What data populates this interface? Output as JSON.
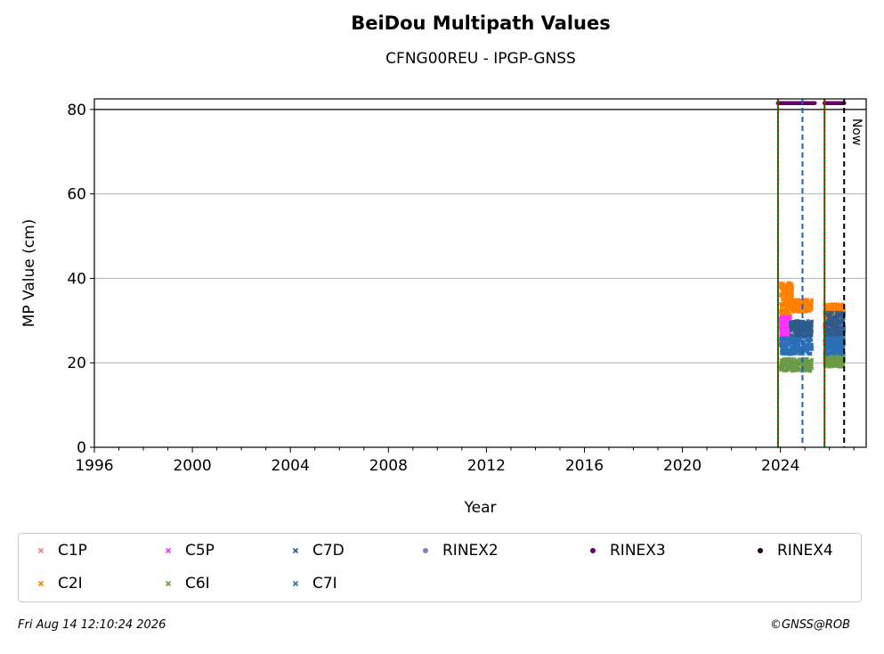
{
  "chart_data": {
    "type": "scatter",
    "title": "BeiDou Multipath Values",
    "subtitle": "CFNG00REU - IPGP-GNSS",
    "xlabel": "Year",
    "ylabel": "MP Value (cm)",
    "xlim": [
      1996,
      2027.5
    ],
    "ylim": [
      0,
      82.5
    ],
    "xticks": [
      1996,
      2000,
      2004,
      2008,
      2012,
      2016,
      2020,
      2024
    ],
    "yticks": [
      0,
      20,
      40,
      60,
      80
    ],
    "grid": "horizontal",
    "legend_placement": "bottom",
    "series": [
      {
        "name": "C1P",
        "color": "#f08080",
        "marker": "x",
        "ranges": [
          {
            "x": [
              2024.0,
              2024.4
            ],
            "y": [
              28,
              31
            ]
          },
          {
            "x": [
              2025.8,
              2026.6
            ],
            "y": [
              27,
              30
            ]
          }
        ]
      },
      {
        "name": "C2I",
        "color": "#ff8000",
        "marker": "x",
        "ranges": [
          {
            "x": [
              2024.0,
              2024.5
            ],
            "y": [
              31,
              39
            ]
          },
          {
            "x": [
              2024.5,
              2025.3
            ],
            "y": [
              32,
              35
            ]
          },
          {
            "x": [
              2025.8,
              2026.6
            ],
            "y": [
              30,
              34
            ]
          }
        ]
      },
      {
        "name": "C5P",
        "color": "#ff33ff",
        "marker": "x",
        "ranges": [
          {
            "x": [
              2024.0,
              2024.4
            ],
            "y": [
              25,
              31
            ]
          },
          {
            "x": [
              2025.8,
              2026.6
            ],
            "y": [
              25,
              29
            ]
          }
        ]
      },
      {
        "name": "C6I",
        "color": "#6b9b47",
        "marker": "x",
        "ranges": [
          {
            "x": [
              2024.0,
              2025.3
            ],
            "y": [
              18,
              21
            ]
          },
          {
            "x": [
              2025.8,
              2026.6
            ],
            "y": [
              19,
              22
            ]
          }
        ]
      },
      {
        "name": "C7D",
        "color": "#2e5c8a",
        "marker": "x",
        "ranges": [
          {
            "x": [
              2024.4,
              2025.3
            ],
            "y": [
              26,
              30
            ]
          },
          {
            "x": [
              2025.8,
              2026.6
            ],
            "y": [
              24,
              32
            ]
          }
        ]
      },
      {
        "name": "C7I",
        "color": "#2b6fb5",
        "marker": "x",
        "ranges": [
          {
            "x": [
              2024.0,
              2025.3
            ],
            "y": [
              22,
              26
            ]
          },
          {
            "x": [
              2025.8,
              2026.6
            ],
            "y": [
              22,
              26
            ]
          }
        ]
      },
      {
        "name": "RINEX2",
        "color": "#8080c0",
        "marker": "dot",
        "ranges": []
      },
      {
        "name": "RINEX3",
        "color": "#660066",
        "marker": "dot",
        "ranges": [
          {
            "x": [
              2023.9,
              2025.4
            ],
            "y": [
              81.5,
              81.5
            ]
          },
          {
            "x": [
              2025.8,
              2026.6
            ],
            "y": [
              81.5,
              81.5
            ]
          }
        ]
      },
      {
        "name": "RINEX4",
        "color": "#1a001a",
        "marker": "dot",
        "ranges": []
      }
    ],
    "vlines": [
      {
        "x": 2023.9,
        "color": "#008000",
        "style": "solid"
      },
      {
        "x": 2023.9,
        "color": "#d00000",
        "style": "dotted"
      },
      {
        "x": 2025.8,
        "color": "#008000",
        "style": "solid"
      },
      {
        "x": 2025.8,
        "color": "#d00000",
        "style": "dotted"
      },
      {
        "x": 2024.9,
        "color": "#1f5fbf",
        "style": "dashed"
      },
      {
        "x": 2026.6,
        "color": "#000000",
        "style": "dashed"
      }
    ],
    "hline": {
      "y": 80,
      "color": "#000000"
    },
    "now_label": "Now"
  },
  "footer": {
    "timestamp": "Fri Aug 14 12:10:24 2026",
    "copyright": "©GNSS@ROB"
  }
}
